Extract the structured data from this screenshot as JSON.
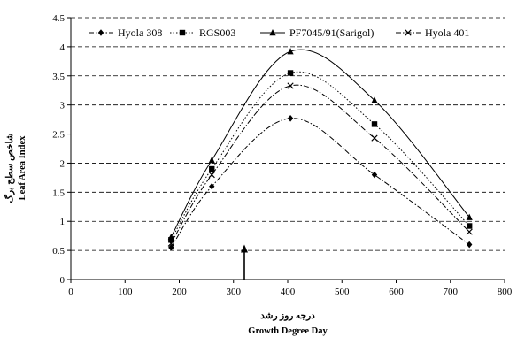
{
  "chart_data": {
    "type": "line",
    "xlabel_fa": "درجه روز رشد",
    "xlabel_en": "Growth Degree Day",
    "ylabel_fa": "شاخص سطح برگ",
    "ylabel_en": "Leaf Area Index",
    "xlim": [
      0,
      800
    ],
    "ylim": [
      0,
      4.5
    ],
    "xticks": [
      0,
      100,
      200,
      300,
      400,
      500,
      600,
      700,
      800
    ],
    "yticks": [
      0,
      0.5,
      1,
      1.5,
      2,
      2.5,
      3,
      3.5,
      4,
      4.5
    ],
    "grid": "horizontal-dashed",
    "legend_position": "top",
    "x": [
      185,
      260,
      405,
      560,
      735
    ],
    "series": [
      {
        "name": "Hyola 308",
        "marker": "diamond",
        "dash": "dash-dot",
        "values": [
          0.55,
          1.6,
          2.77,
          1.8,
          0.6
        ]
      },
      {
        "name": "RGS003",
        "marker": "square",
        "dash": "dotted",
        "values": [
          0.68,
          1.9,
          3.55,
          2.67,
          0.92
        ]
      },
      {
        "name": "PF7045/91(Sarigol)",
        "marker": "triangle",
        "dash": "solid",
        "values": [
          0.73,
          2.05,
          3.92,
          3.08,
          1.07
        ]
      },
      {
        "name": "Hyola 401",
        "marker": "x",
        "dash": "dash-dot",
        "values": [
          0.62,
          1.8,
          3.33,
          2.43,
          0.82
        ]
      }
    ],
    "annotation": {
      "type": "arrow",
      "x": 320,
      "y_from": 0,
      "y_to": 0.6
    }
  }
}
